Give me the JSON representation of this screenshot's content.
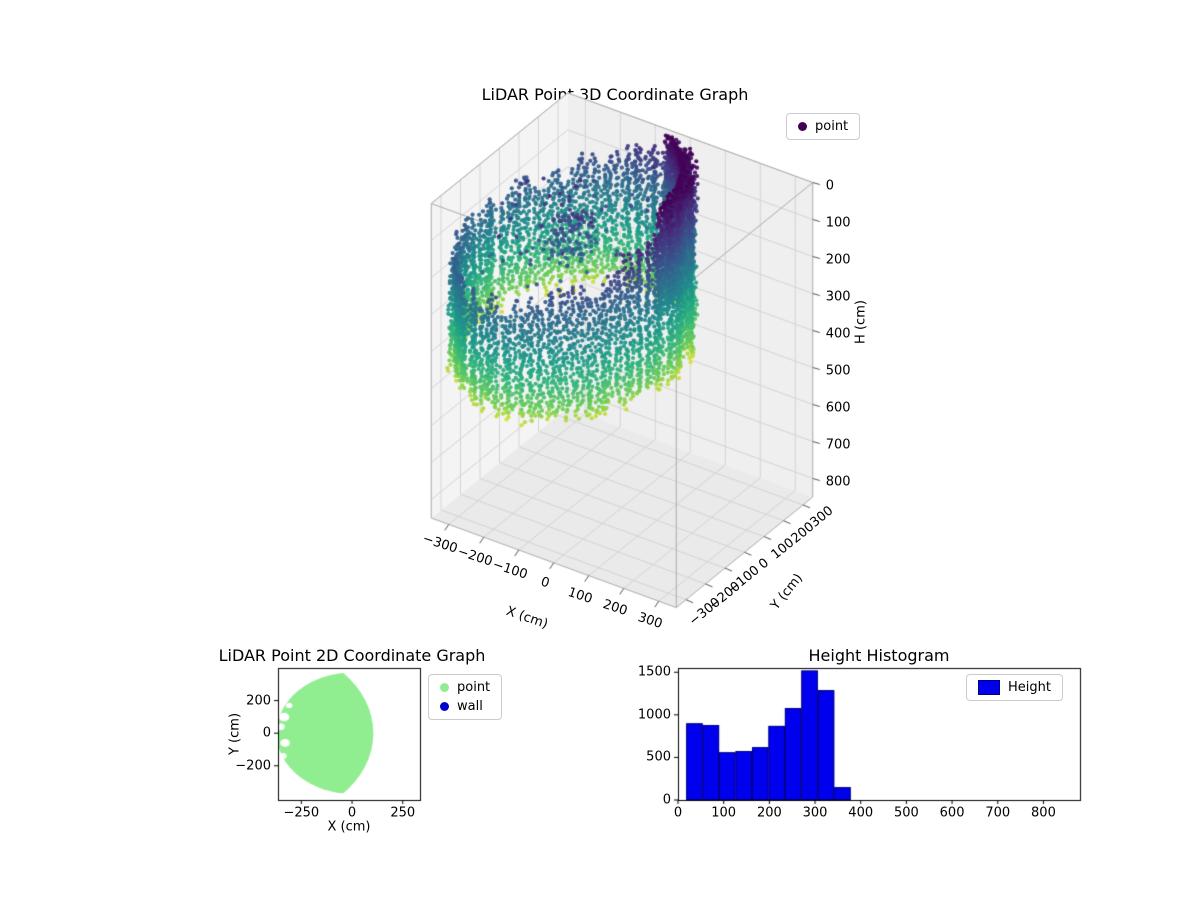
{
  "figure": {
    "background": "#ffffff"
  },
  "plot3d": {
    "title": "LiDAR Point 3D Coordinate Graph",
    "xlabel": "X (cm)",
    "ylabel": "Y (cm)",
    "zlabel": "H (cm)",
    "xlim": [
      -350,
      350
    ],
    "ylim": [
      -350,
      350
    ],
    "zlim": [
      0,
      850
    ],
    "zaxis_inverted": true,
    "xticks": {
      "values": [
        -300,
        -200,
        -100,
        0,
        100,
        200,
        300
      ],
      "labels": [
        "−300",
        "−200",
        "−100",
        "0",
        "100",
        "200",
        "300"
      ]
    },
    "yticks": {
      "values": [
        -300,
        -200,
        -100,
        0,
        100,
        200,
        300
      ],
      "labels": [
        "−300",
        "−200",
        "−100",
        "0",
        "100",
        "200",
        "300"
      ]
    },
    "zticks": {
      "values": [
        0,
        100,
        200,
        300,
        400,
        500,
        600,
        700,
        800
      ],
      "labels": [
        "0",
        "100",
        "200",
        "300",
        "400",
        "500",
        "600",
        "700",
        "800"
      ]
    },
    "legend": [
      {
        "label": "point",
        "color": "#440154"
      }
    ],
    "colors": {
      "pane_left": "#f4f4f4",
      "pane_right": "#efefef",
      "pane_bottom": "#eaeaea",
      "grid": "#d4d4d4",
      "edge": "#ababab",
      "tick": "#555555"
    },
    "colormap": [
      "#440154",
      "#482878",
      "#3e4a89",
      "#31688e",
      "#26828e",
      "#1f9e89",
      "#35b779",
      "#6ece58",
      "#fde725"
    ]
  },
  "plot2d": {
    "title": "LiDAR Point 2D Coordinate Graph",
    "xlabel": "X (cm)",
    "ylabel": "Y (cm)",
    "xlim": [
      -365,
      335
    ],
    "ylim": [
      -410,
      400
    ],
    "xticks": {
      "values": [
        -250,
        0,
        250
      ],
      "labels": [
        "−250",
        "0",
        "250"
      ]
    },
    "yticks": {
      "values": [
        -200,
        0,
        200
      ],
      "labels": [
        "−200",
        "0",
        "200"
      ]
    },
    "legend": [
      {
        "label": "point",
        "color": "#90ee90"
      },
      {
        "label": "wall",
        "color": "#0000cd"
      }
    ]
  },
  "hist": {
    "title": "Height Histogram",
    "xticks": {
      "values": [
        0,
        100,
        200,
        300,
        400,
        500,
        600,
        700,
        800
      ],
      "labels": [
        "0",
        "100",
        "200",
        "300",
        "400",
        "500",
        "600",
        "700",
        "800"
      ]
    },
    "yticks": {
      "values": [
        0,
        500,
        1000,
        1500
      ],
      "labels": [
        "0",
        "500",
        "1000",
        "1500"
      ]
    },
    "legend": [
      {
        "label": "Height",
        "color": "#0000ee"
      }
    ]
  },
  "chart_data": [
    {
      "type": "scatter",
      "projection": "3d",
      "title": "LiDAR Point 3D Coordinate Graph",
      "xlabel": "X (cm)",
      "ylabel": "Y (cm)",
      "zlabel": "H (cm)",
      "xlim": [
        -350,
        350
      ],
      "ylim": [
        -350,
        350
      ],
      "zlim": [
        0,
        850
      ],
      "zaxis_inverted": true,
      "legend": [
        "point"
      ],
      "colormap": "viridis (dark purple = low H at top rim, yellow = high H at bottom fringe)",
      "series": [
        {
          "name": "point",
          "shape": "elliptic cylindrical wall scan colored by height",
          "center": [
            -135,
            -10
          ],
          "radius_x": 260,
          "radius_y": 390,
          "height_range": [
            0,
            490
          ],
          "columns": 150,
          "rim_top_height_back": 190,
          "rim_top_height_right_sector": 0,
          "dense_low_height_sector_rad": [
            0.02,
            1.25
          ],
          "interior_scatter_height_range": [
            60,
            210
          ]
        }
      ]
    },
    {
      "type": "scatter",
      "projection": "2d",
      "title": "LiDAR Point 2D Coordinate Graph",
      "xlabel": "X (cm)",
      "ylabel": "Y (cm)",
      "xlim": [
        -365,
        335
      ],
      "ylim": [
        -410,
        400
      ],
      "xticks": [
        -250,
        0,
        250
      ],
      "yticks": [
        -200,
        0,
        200
      ],
      "legend": [
        "point",
        "wall"
      ],
      "series": [
        {
          "name": "point",
          "color": "#90ee90",
          "region": {
            "disc_center": [
              0,
              0
            ],
            "disc_radius": 372,
            "right_boundary_circle": {
              "center": [
                -430,
                0
              ],
              "radius": 535
            },
            "holes": [
              [
                -335,
                100,
                26
              ],
              [
                -352,
                40,
                20
              ],
              [
                -330,
                -60,
                24
              ],
              [
                -310,
                170,
                16
              ],
              [
                -340,
                -140,
                18
              ]
            ]
          }
        },
        {
          "name": "wall",
          "color": "#0000cd"
        }
      ]
    },
    {
      "type": "bar",
      "title": "Height Histogram",
      "legend": [
        "Height"
      ],
      "xlim": [
        0,
        880
      ],
      "ylim": [
        0,
        1550
      ],
      "xticks": [
        0,
        100,
        200,
        300,
        400,
        500,
        600,
        700,
        800
      ],
      "yticks": [
        0,
        500,
        1000,
        1500
      ],
      "bar_color": "#0000ee",
      "bar_edge": "#000080",
      "bin_edges": [
        18,
        54,
        90,
        126,
        162,
        198,
        234,
        270,
        306,
        342,
        378
      ],
      "counts": [
        900,
        880,
        560,
        575,
        620,
        870,
        1080,
        1520,
        1290,
        150
      ]
    }
  ]
}
